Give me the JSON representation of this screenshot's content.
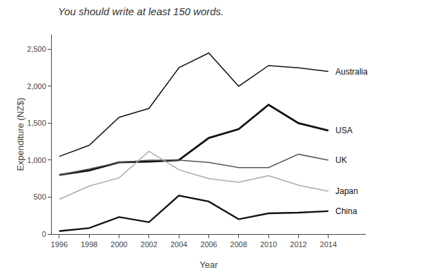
{
  "chart_data": {
    "type": "line",
    "title": "You should write at least 150 words.",
    "x_label": "Year",
    "y_label": "Expenditure (NZ$)",
    "x": [
      1996,
      1998,
      2000,
      2002,
      2004,
      2006,
      2008,
      2010,
      2012,
      2014
    ],
    "series": [
      {
        "name": "Australia",
        "color": "#111111",
        "values": [
          1050,
          1200,
          1580,
          1700,
          2250,
          2450,
          2000,
          2280,
          2250,
          2200
        ]
      },
      {
        "name": "USA",
        "color": "#111111",
        "values": [
          800,
          860,
          970,
          980,
          1000,
          1300,
          1420,
          1750,
          1500,
          1400
        ]
      },
      {
        "name": "UK",
        "color": "#555555",
        "values": [
          800,
          880,
          970,
          1000,
          1000,
          970,
          900,
          900,
          1080,
          1000
        ]
      },
      {
        "name": "Japan",
        "color": "#aaaaaa",
        "values": [
          470,
          650,
          760,
          1120,
          870,
          750,
          700,
          790,
          660,
          580
        ]
      },
      {
        "name": "China",
        "color": "#111111",
        "values": [
          40,
          80,
          230,
          160,
          520,
          440,
          200,
          280,
          290,
          310
        ]
      }
    ],
    "xlim": [
      1995.5,
      2016.5
    ],
    "xticks": [
      1996,
      1998,
      2000,
      2002,
      2004,
      2006,
      2008,
      2010,
      2012,
      2014
    ],
    "ylim": [
      0,
      2700
    ],
    "yticks": [
      0,
      500,
      {
        "value": 1000,
        "label": "1,000"
      },
      {
        "value": 1500,
        "label": "1,500"
      },
      {
        "value": 2000,
        "label": "2,000"
      },
      {
        "value": 2500,
        "label": "2,500"
      }
    ],
    "grid": false
  }
}
